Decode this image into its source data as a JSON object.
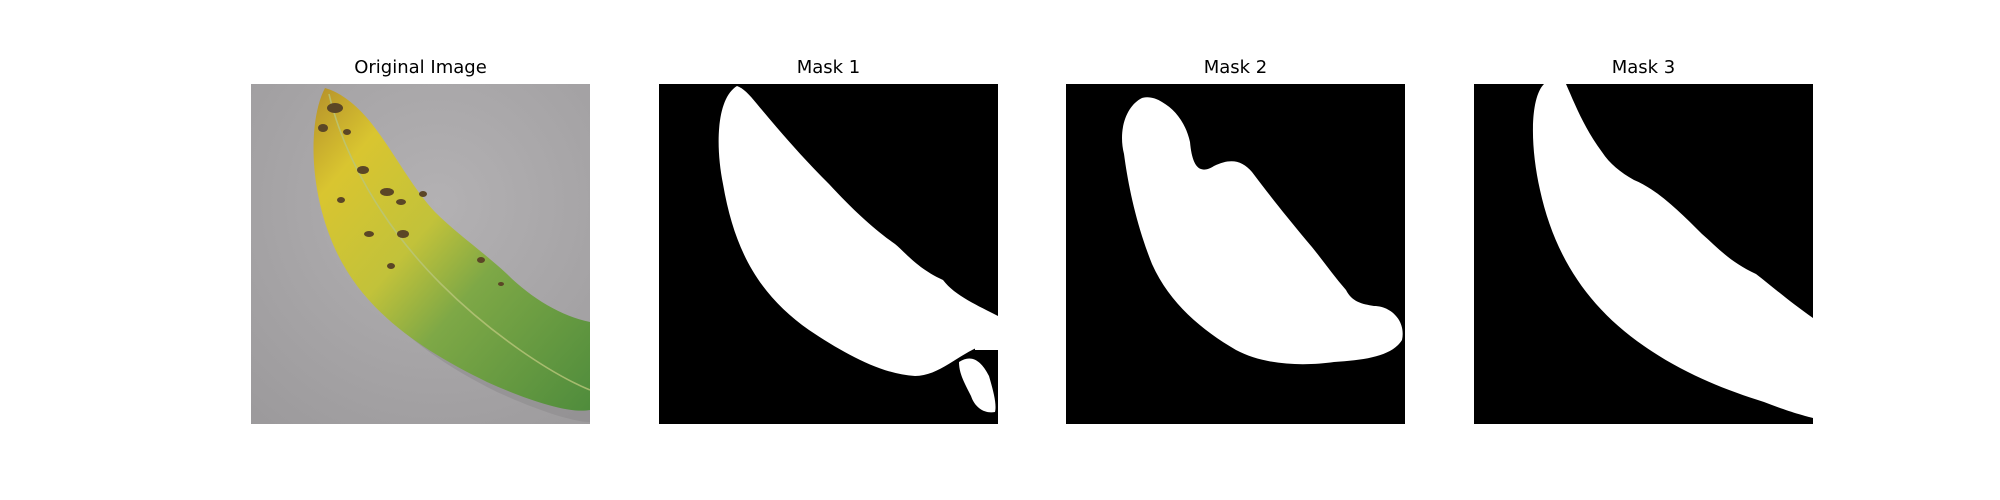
{
  "figure": {
    "panels": [
      {
        "id": "original",
        "title": "Original Image"
      },
      {
        "id": "mask1",
        "title": "Mask 1"
      },
      {
        "id": "mask2",
        "title": "Mask 2"
      },
      {
        "id": "mask3",
        "title": "Mask 3"
      }
    ]
  },
  "colors": {
    "background": "#ffffff",
    "mask_background": "#000000",
    "mask_foreground": "#ffffff",
    "photo_surface": "#a6a4a6",
    "leaf_yellow": "#d6c22e",
    "leaf_green": "#5f9a44",
    "leaf_spot": "#5a4a2a"
  }
}
